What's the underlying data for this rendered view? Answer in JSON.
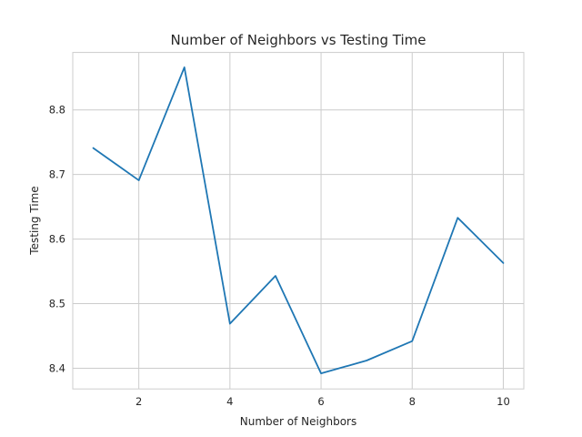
{
  "chart_data": {
    "type": "line",
    "title": "Number of Neighbors vs Testing Time",
    "xlabel": "Number of Neighbors",
    "ylabel": "Testing Time",
    "x": [
      1,
      2,
      3,
      4,
      5,
      6,
      7,
      8,
      9,
      10
    ],
    "series": [
      {
        "values": [
          8.741,
          8.691,
          8.866,
          8.469,
          8.543,
          8.392,
          8.412,
          8.442,
          8.633,
          8.563
        ]
      }
    ],
    "xlim": [
      0.55,
      10.45
    ],
    "ylim": [
      8.368,
      8.889
    ],
    "xticks": [
      2,
      4,
      6,
      8,
      10
    ],
    "yticks": [
      8.4,
      8.5,
      8.6,
      8.7,
      8.8
    ],
    "grid": true,
    "colors": {
      "line": "#1f77b4",
      "grid": "#cccccc"
    }
  }
}
